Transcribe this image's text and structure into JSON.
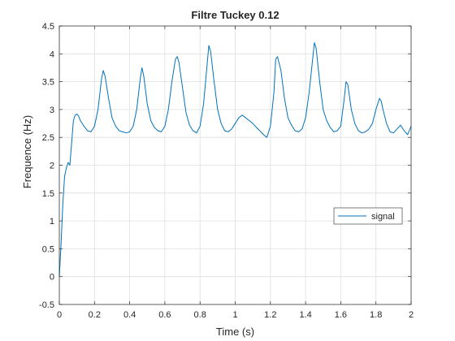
{
  "chart_data": {
    "type": "line",
    "title": "Filtre Tuckey 0.12",
    "xlabel": "Time (s)",
    "ylabel": "Frequence (Hz)",
    "xlim": [
      0,
      2
    ],
    "ylim": [
      -0.5,
      4.5
    ],
    "x_ticks": [
      0,
      0.2,
      0.4,
      0.6,
      0.8,
      1,
      1.2,
      1.4,
      1.6,
      1.8,
      2
    ],
    "x_tick_labels": [
      "0",
      "0.2",
      "0.4",
      "0.6",
      "0.8",
      "1",
      "1.2",
      "1.4",
      "1.6",
      "1.8",
      "2"
    ],
    "y_ticks": [
      -0.5,
      0,
      0.5,
      1,
      1.5,
      2,
      2.5,
      3,
      3.5,
      4,
      4.5
    ],
    "y_tick_labels": [
      "-0.5",
      "0",
      "0.5",
      "1",
      "1.5",
      "2",
      "2.5",
      "3",
      "3.5",
      "4",
      "4.5"
    ],
    "grid": true,
    "box": true,
    "legend_position": "right",
    "colors": {
      "series": "#0072bd",
      "grid": "#dfdfdf",
      "axis": "#262626"
    },
    "series": [
      {
        "name": "signal",
        "x": [
          0,
          0.01,
          0.02,
          0.03,
          0.04,
          0.05,
          0.06,
          0.07,
          0.08,
          0.09,
          0.1,
          0.11,
          0.12,
          0.14,
          0.16,
          0.18,
          0.2,
          0.22,
          0.24,
          0.25,
          0.26,
          0.28,
          0.3,
          0.32,
          0.34,
          0.36,
          0.38,
          0.4,
          0.42,
          0.44,
          0.46,
          0.47,
          0.48,
          0.5,
          0.52,
          0.54,
          0.56,
          0.58,
          0.6,
          0.62,
          0.64,
          0.66,
          0.67,
          0.68,
          0.7,
          0.72,
          0.74,
          0.76,
          0.78,
          0.8,
          0.82,
          0.84,
          0.85,
          0.86,
          0.88,
          0.9,
          0.92,
          0.94,
          0.96,
          0.98,
          1.0,
          1.02,
          1.04,
          1.06,
          1.08,
          1.1,
          1.12,
          1.14,
          1.16,
          1.18,
          1.2,
          1.22,
          1.23,
          1.24,
          1.26,
          1.28,
          1.3,
          1.32,
          1.34,
          1.36,
          1.38,
          1.4,
          1.42,
          1.44,
          1.45,
          1.46,
          1.48,
          1.5,
          1.52,
          1.54,
          1.56,
          1.58,
          1.6,
          1.62,
          1.63,
          1.64,
          1.66,
          1.68,
          1.7,
          1.72,
          1.74,
          1.76,
          1.78,
          1.8,
          1.82,
          1.83,
          1.84,
          1.86,
          1.88,
          1.9,
          1.92,
          1.94,
          1.96,
          1.98,
          2.0
        ],
        "y": [
          0,
          0.6,
          1.3,
          1.8,
          1.95,
          2.05,
          2.0,
          2.4,
          2.8,
          2.9,
          2.92,
          2.88,
          2.8,
          2.7,
          2.62,
          2.6,
          2.7,
          3.0,
          3.55,
          3.7,
          3.6,
          3.2,
          2.85,
          2.7,
          2.62,
          2.6,
          2.58,
          2.6,
          2.7,
          3.0,
          3.55,
          3.75,
          3.6,
          3.1,
          2.8,
          2.68,
          2.62,
          2.6,
          2.7,
          3.0,
          3.5,
          3.9,
          3.95,
          3.85,
          3.4,
          2.95,
          2.72,
          2.62,
          2.58,
          2.7,
          3.1,
          3.8,
          4.15,
          4.05,
          3.5,
          3.0,
          2.75,
          2.62,
          2.6,
          2.65,
          2.75,
          2.85,
          2.9,
          2.85,
          2.8,
          2.75,
          2.68,
          2.62,
          2.55,
          2.5,
          2.7,
          3.3,
          3.9,
          3.95,
          3.7,
          3.2,
          2.85,
          2.72,
          2.62,
          2.6,
          2.65,
          2.85,
          3.3,
          3.9,
          4.2,
          4.1,
          3.5,
          3.0,
          2.8,
          2.68,
          2.6,
          2.62,
          2.7,
          3.2,
          3.5,
          3.45,
          3.0,
          2.75,
          2.62,
          2.58,
          2.6,
          2.65,
          2.75,
          3.0,
          3.2,
          3.15,
          3.0,
          2.75,
          2.6,
          2.58,
          2.65,
          2.72,
          2.62,
          2.55,
          2.7
        ]
      }
    ]
  }
}
